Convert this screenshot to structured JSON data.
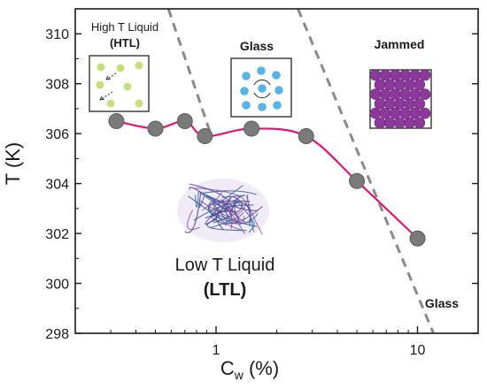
{
  "chart_data": {
    "type": "scatter",
    "ylabel": "T (K)",
    "xlabel_main": "C",
    "xlabel_sub": "w",
    "xlabel_unit": " (%)",
    "xscale": "log",
    "xlim": [
      0.2,
      20
    ],
    "ylim": [
      298,
      311
    ],
    "x_ticks": [
      1,
      10
    ],
    "x_tick_labels": [
      "1",
      "10"
    ],
    "y_ticks": [
      298,
      300,
      302,
      304,
      306,
      308,
      310
    ],
    "y_tick_labels": [
      "298",
      "300",
      "302",
      "304",
      "306",
      "308",
      "310"
    ],
    "grid": false,
    "series": [
      {
        "marker_color": "#7a7a7a",
        "line_color": "#e0157a",
        "x": [
          0.32,
          0.5,
          0.7,
          0.88,
          1.5,
          2.8,
          5.0,
          10.0
        ],
        "y": [
          306.5,
          306.2,
          306.5,
          305.9,
          306.2,
          305.9,
          304.1,
          301.8
        ]
      }
    ],
    "boundaries": [
      {
        "style": "dashed",
        "color": "#8a8a8a",
        "from": [
          0.58,
          311
        ],
        "to": [
          0.93,
          306.1
        ]
      },
      {
        "style": "dashed",
        "color": "#8a8a8a",
        "from": [
          2.55,
          311
        ],
        "to": [
          12.0,
          298
        ]
      }
    ],
    "regions": {
      "htl_line1": "High T Liquid",
      "htl_line2": "(HTL)",
      "glass_top": "Glass",
      "jammed": "Jammed",
      "ltl_line1": "Low T Liquid",
      "ltl_line2": "(LTL)",
      "glass_bottom": "Glass"
    },
    "inset_colors": {
      "htl_particles": "#c5e07a",
      "glass_particles": "#56b4e6",
      "jammed_particles": "#8b3a9c",
      "ltl_fibers": "#4a3f8c"
    }
  }
}
